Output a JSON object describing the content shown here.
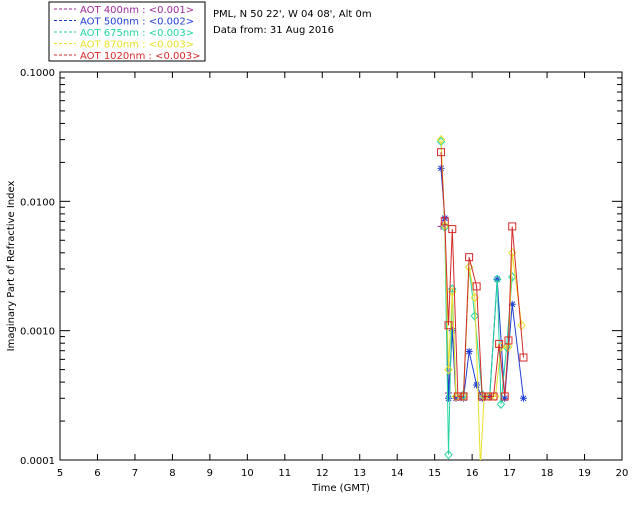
{
  "chart_data": {
    "type": "line",
    "title": "",
    "xlabel": "Time (GMT)",
    "ylabel": "Imaginary Part of Refractive Index",
    "xlim": [
      5,
      20
    ],
    "ylim": [
      0.0001,
      0.1
    ],
    "yscale": "log",
    "grid": false,
    "legend_position": "top-left, above plot",
    "x_ticks": [
      "5",
      "6",
      "7",
      "8",
      "9",
      "10",
      "11",
      "12",
      "13",
      "14",
      "15",
      "16",
      "17",
      "18",
      "19",
      "20"
    ],
    "y_ticks": [
      "0.0001",
      "0.0010",
      "0.0100",
      "0.1000"
    ],
    "info_lines": [
      "PML, N 50 22', W 04 08', Alt 0m",
      "Data from: 31 Aug 2016"
    ],
    "series": [
      {
        "name": "AOT  400nm : <0.001>",
        "color": "#9b2a9b",
        "marker": "plus",
        "points": [
          [
            15.17,
            0.0064
          ],
          [
            15.27,
            0.0075
          ],
          [
            15.37,
            0.00033
          ],
          [
            15.47,
            0.001
          ],
          [
            15.57,
            0.00031
          ]
        ]
      },
      {
        "name": "AOT  500nm : <0.002>",
        "color": "#1f3fd6",
        "marker": "asterisk",
        "points": [
          [
            15.17,
            0.018
          ],
          [
            15.27,
            0.0074
          ],
          [
            15.37,
            0.0003
          ],
          [
            15.47,
            0.001
          ],
          [
            15.57,
            0.0003
          ],
          [
            15.77,
            0.0003
          ],
          [
            15.92,
            0.00069
          ],
          [
            16.12,
            0.00038
          ],
          [
            16.27,
            0.0003
          ],
          [
            16.47,
            0.00031
          ],
          [
            16.67,
            0.0025
          ],
          [
            16.87,
            0.0003
          ],
          [
            17.07,
            0.0016
          ],
          [
            17.37,
            0.0003
          ]
        ]
      },
      {
        "name": "AOT  675nm : <0.003>",
        "color": "#21d4a0",
        "marker": "diamond",
        "points": [
          [
            15.17,
            0.029
          ],
          [
            15.27,
            0.0063
          ],
          [
            15.37,
            0.00011
          ],
          [
            15.47,
            0.0021
          ],
          [
            15.57,
            0.00031
          ],
          [
            15.77,
            0.00032
          ],
          [
            15.92,
            0.0031
          ],
          [
            16.07,
            0.0013
          ],
          [
            16.27,
            0.00032
          ],
          [
            16.47,
            0.00031
          ],
          [
            16.67,
            0.0025
          ],
          [
            16.77,
            0.00027
          ],
          [
            16.92,
            0.00075
          ],
          [
            17.07,
            0.0026
          ]
        ]
      },
      {
        "name": "AOT  870nm : <0.003>",
        "color": "#e8e02a",
        "marker": "diamond",
        "points": [
          [
            15.17,
            0.03
          ],
          [
            15.27,
            0.0065
          ],
          [
            15.37,
            0.0005
          ],
          [
            15.47,
            0.002
          ],
          [
            15.57,
            0.00031
          ],
          [
            15.77,
            0.00031
          ],
          [
            15.92,
            0.0031
          ],
          [
            16.07,
            0.0018
          ],
          [
            16.22,
            9e-05
          ],
          [
            16.32,
            0.00031
          ],
          [
            16.47,
            0.00031
          ],
          [
            16.62,
            0.00031
          ],
          [
            16.77,
            0.00075
          ],
          [
            16.97,
            0.00075
          ],
          [
            17.07,
            0.004
          ],
          [
            17.32,
            0.0011
          ]
        ]
      },
      {
        "name": "AOT 1020nm : <0.003>",
        "color": "#d42a2a",
        "marker": "square",
        "points": [
          [
            15.17,
            0.024
          ],
          [
            15.27,
            0.007
          ],
          [
            15.37,
            0.0011
          ],
          [
            15.47,
            0.0061
          ],
          [
            15.62,
            0.00031
          ],
          [
            15.77,
            0.00031
          ],
          [
            15.92,
            0.0037
          ],
          [
            16.12,
            0.0022
          ],
          [
            16.27,
            0.00031
          ],
          [
            16.42,
            0.00031
          ],
          [
            16.57,
            0.00031
          ],
          [
            16.72,
            0.00079
          ],
          [
            16.87,
            0.00031
          ],
          [
            16.97,
            0.00084
          ],
          [
            17.07,
            0.0064
          ],
          [
            17.37,
            0.00062
          ]
        ]
      }
    ]
  }
}
